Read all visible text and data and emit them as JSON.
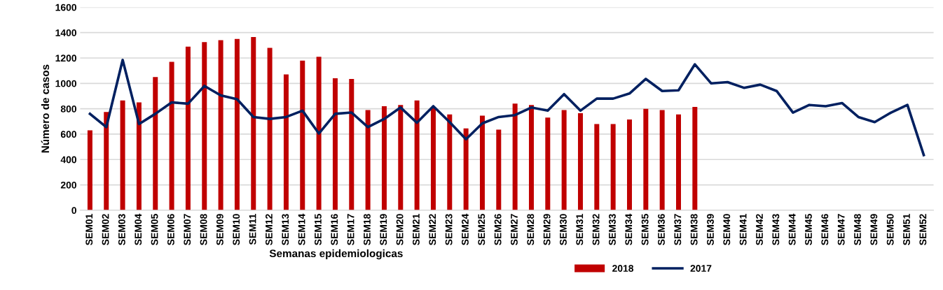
{
  "chart_data": {
    "type": "bar",
    "xlabel": "Semanas epidemiologicas",
    "ylabel": "Número de casos",
    "categories": [
      "SEM01",
      "SEM02",
      "SEM03",
      "SEM04",
      "SEM05",
      "SEM06",
      "SEM07",
      "SEM08",
      "SEM09",
      "SEM10",
      "SEM11",
      "SEM12",
      "SEM13",
      "SEM14",
      "SEM15",
      "SEM16",
      "SEM17",
      "SEM18",
      "SEM19",
      "SEM20",
      "SEM21",
      "SEM22",
      "SEM23",
      "SEM24",
      "SEM25",
      "SEM26",
      "SEM27",
      "SEM28",
      "SEM29",
      "SEM30",
      "SEM31",
      "SEM32",
      "SEM33",
      "SEM34",
      "SEM35",
      "SEM36",
      "SEM37",
      "SEM38",
      "SEM39",
      "SEM40",
      "SEM41",
      "SEM42",
      "SEM43",
      "SEM44",
      "SEM45",
      "SEM46",
      "SEM47",
      "SEM48",
      "SEM49",
      "SEM50",
      "SEM51",
      "SEM52"
    ],
    "series": [
      {
        "name": "2018",
        "color": "#c00000",
        "values": [
          630,
          775,
          865,
          850,
          1050,
          1170,
          1290,
          1325,
          1340,
          1350,
          1365,
          1280,
          1070,
          1180,
          1210,
          1040,
          1035,
          790,
          820,
          830,
          865,
          810,
          755,
          645,
          745,
          635,
          840,
          830,
          730,
          790,
          765,
          680,
          680,
          715,
          800,
          790,
          755,
          815,
          null,
          null,
          null,
          null,
          null,
          null,
          null,
          null,
          null,
          null,
          null,
          null,
          null,
          null
        ]
      },
      {
        "name": "2017",
        "type": "line",
        "color": "#002060",
        "values": [
          760,
          655,
          1185,
          680,
          760,
          850,
          840,
          980,
          905,
          875,
          735,
          720,
          735,
          785,
          605,
          760,
          770,
          655,
          720,
          810,
          690,
          820,
          695,
          560,
          685,
          735,
          750,
          810,
          785,
          915,
          785,
          880,
          880,
          920,
          1035,
          940,
          945,
          1150,
          1000,
          1010,
          965,
          990,
          940,
          770,
          830,
          820,
          845,
          735,
          695,
          770,
          830,
          435
        ]
      }
    ],
    "ylim": [
      0,
      1600
    ],
    "yticks": [
      0,
      200,
      400,
      600,
      800,
      1000,
      1200,
      1400,
      1600
    ],
    "grid": "y",
    "legend": "bottom",
    "marker": "none",
    "line_style": "solid"
  }
}
